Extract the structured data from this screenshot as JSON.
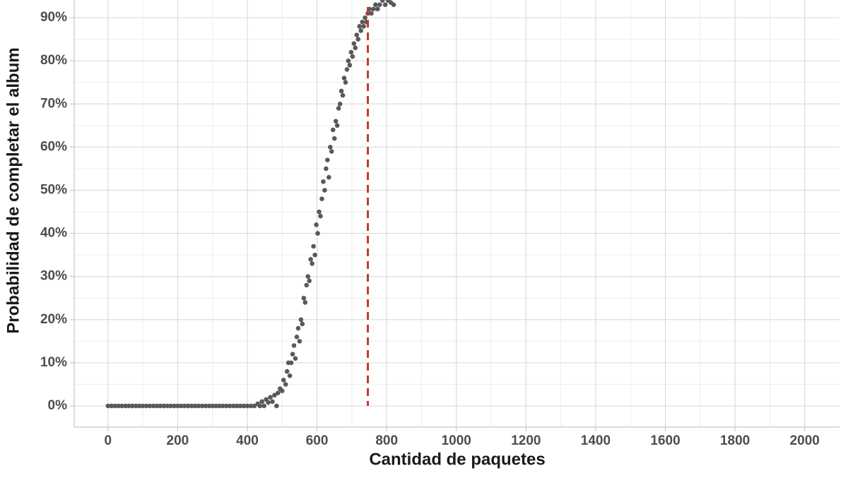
{
  "chart_data": {
    "type": "scatter",
    "x_label": "Cantidad de paquetes",
    "y_label": "Probabilidad de completar el album",
    "color": "#595959",
    "x": [
      0,
      10,
      20,
      30,
      40,
      50,
      60,
      70,
      80,
      90,
      100,
      110,
      120,
      130,
      140,
      150,
      160,
      170,
      180,
      190,
      200,
      210,
      220,
      230,
      240,
      250,
      260,
      270,
      280,
      290,
      300,
      310,
      320,
      330,
      340,
      350,
      360,
      370,
      380,
      390,
      400,
      410,
      420,
      430,
      436,
      442,
      448,
      454,
      460,
      466,
      472,
      478,
      484,
      488,
      494,
      500,
      504,
      510,
      514,
      518,
      522,
      526,
      530,
      534,
      538,
      542,
      546,
      550,
      554,
      558,
      562,
      566,
      570,
      574,
      578,
      582,
      586,
      590,
      594,
      598,
      602,
      606,
      610,
      614,
      618,
      622,
      626,
      630,
      634,
      638,
      642,
      646,
      650,
      654,
      658,
      662,
      666,
      670,
      674,
      678,
      682,
      686,
      690,
      694,
      698,
      702,
      706,
      710,
      714,
      718,
      722,
      726,
      730,
      734,
      738,
      742,
      746,
      750,
      756,
      762,
      768,
      774,
      780,
      788,
      796,
      804,
      812,
      820
    ],
    "values": [
      0,
      0,
      0,
      0,
      0,
      0,
      0,
      0,
      0,
      0,
      0,
      0,
      0,
      0,
      0,
      0,
      0,
      0,
      0,
      0,
      0,
      0,
      0,
      0,
      0,
      0,
      0,
      0,
      0,
      0,
      0,
      0,
      0,
      0,
      0,
      0,
      0,
      0,
      0,
      0,
      0,
      0,
      0,
      0.5,
      0,
      1,
      0,
      1.5,
      0.8,
      2,
      1,
      2.5,
      0,
      3,
      4,
      3.5,
      6,
      5,
      8,
      10,
      7,
      10,
      12,
      14,
      11,
      16,
      18,
      15,
      20,
      19,
      25,
      24,
      28,
      30,
      29,
      34,
      33,
      37,
      35,
      42,
      40,
      45,
      44,
      48,
      52,
      50,
      55,
      57,
      53,
      60,
      59,
      64,
      62,
      66,
      65,
      69,
      70,
      73,
      72,
      76,
      75,
      78,
      80,
      79,
      82,
      81,
      84,
      83,
      86,
      85,
      88,
      87,
      89,
      88,
      90,
      89,
      91,
      92,
      91,
      92,
      93,
      92,
      93,
      94,
      93,
      94,
      93.5,
      93
    ],
    "xlim": [
      -97,
      2100
    ],
    "ylim": [
      -4.9,
      94.1
    ],
    "xticks": [
      0,
      200,
      400,
      600,
      800,
      1000,
      1200,
      1400,
      1600,
      1800,
      2000
    ],
    "yticks": [
      {
        "value": 0,
        "label": "0%"
      },
      {
        "value": 10,
        "label": "10%"
      },
      {
        "value": 20,
        "label": "20%"
      },
      {
        "value": 30,
        "label": "30%"
      },
      {
        "value": 40,
        "label": "40%"
      },
      {
        "value": 50,
        "label": "50%"
      },
      {
        "value": 60,
        "label": "60%"
      },
      {
        "value": 70,
        "label": "70%"
      },
      {
        "value": 80,
        "label": "80%"
      },
      {
        "value": 90,
        "label": "90%"
      }
    ],
    "grid": true,
    "minor_grid": true,
    "reference_line": {
      "x": 746,
      "color": "#c0392b"
    }
  }
}
